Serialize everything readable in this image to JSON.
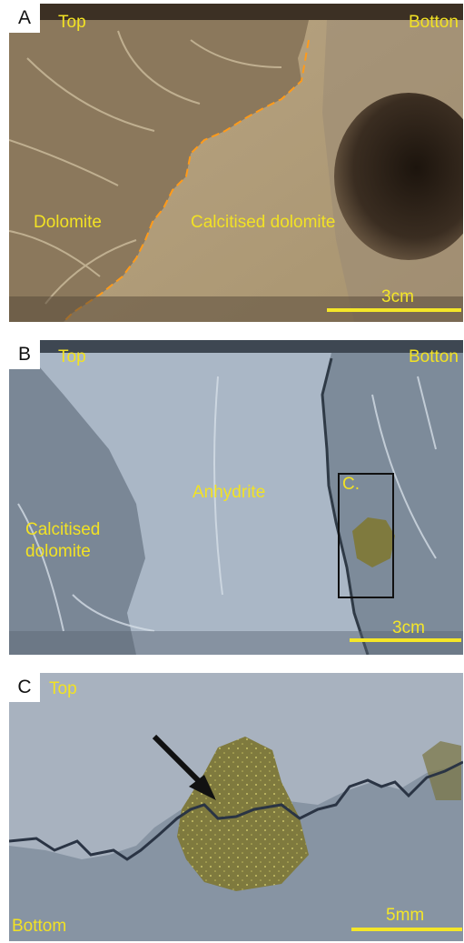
{
  "panels": {
    "a": {
      "letter": "A",
      "top_label": "Top",
      "bottom_label": "Botton",
      "labels": {
        "left": "Dolomite",
        "right": "Calcitised dolomite"
      },
      "scale": "3cm"
    },
    "b": {
      "letter": "B",
      "top_label": "Top",
      "bottom_label": "Botton",
      "labels": {
        "left_line1": "Calcitised",
        "left_line2": "dolomite",
        "center": "Anhydrite",
        "box": "C."
      },
      "scale": "3cm"
    },
    "c": {
      "letter": "C",
      "top_label": "Top",
      "bottom_label": "Bottom",
      "scale": "5mm"
    }
  },
  "colors": {
    "label": "#f2e224",
    "scale_bar": "#f4e628",
    "boundary_dash": "#ff9b1a",
    "dolomite": "#8d7a5f",
    "calcitised_dolomite": "#b5a181",
    "anhydrite": "#aab7c6",
    "grey_dolomite": "#7f8d9c",
    "inclusion": "#7f7a3e"
  },
  "icons": {
    "arrow": "arrow-pointer-icon",
    "inset": "inset-box-outline"
  }
}
